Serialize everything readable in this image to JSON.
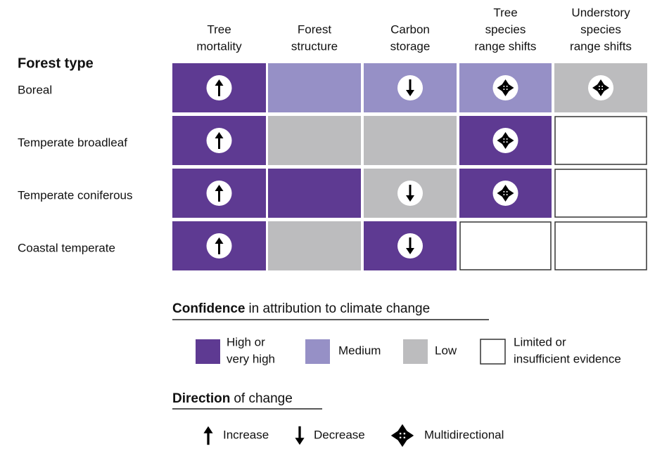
{
  "header": {
    "row_heading": "Forest type",
    "columns": [
      [
        "Tree",
        "mortality"
      ],
      [
        "Forest",
        "structure"
      ],
      [
        "Carbon",
        "storage"
      ],
      [
        "Tree",
        "species",
        "range shifts"
      ],
      [
        "Understory",
        "species",
        "range shifts"
      ]
    ]
  },
  "table": {
    "rows": [
      {
        "label": "Boreal",
        "cells": [
          {
            "fill": "#5e3a92",
            "arrow": 0
          },
          {
            "fill": "#9690c6",
            "arrow": null
          },
          {
            "fill": "#9690c6",
            "arrow": 1
          },
          {
            "fill": "#9690c6",
            "arrow": 2
          },
          {
            "fill": "#bcbcbe",
            "arrow": 2
          }
        ]
      },
      {
        "label": "Temperate broadleaf",
        "cells": [
          {
            "fill": "#5e3a92",
            "arrow": 0
          },
          {
            "fill": "#bcbcbe",
            "arrow": null
          },
          {
            "fill": "#bcbcbe",
            "arrow": null
          },
          {
            "fill": "#5e3a92",
            "arrow": 2
          },
          {
            "fill": "#ffffff",
            "arrow": null
          }
        ]
      },
      {
        "label": "Temperate coniferous",
        "cells": [
          {
            "fill": "#5e3a92",
            "arrow": 0
          },
          {
            "fill": "#5e3a92",
            "arrow": null
          },
          {
            "fill": "#bcbcbe",
            "arrow": 1
          },
          {
            "fill": "#5e3a92",
            "arrow": 2
          },
          {
            "fill": "#ffffff",
            "arrow": null
          }
        ]
      },
      {
        "label": "Coastal temperate",
        "cells": [
          {
            "fill": "#5e3a92",
            "arrow": 0
          },
          {
            "fill": "#bcbcbe",
            "arrow": null
          },
          {
            "fill": "#5e3a92",
            "arrow": 1
          },
          {
            "fill": "#ffffff",
            "arrow": null
          },
          {
            "fill": "#ffffff",
            "arrow": null
          }
        ]
      }
    ]
  },
  "legend": {
    "confidence": {
      "title_bold": "Confidence",
      "title_rest": "in attribution to climate change",
      "items": [
        {
          "lines": [
            "High or",
            "very high"
          ],
          "fill": "#5e3a92"
        },
        {
          "lines": [
            "Medium"
          ],
          "fill": "#9690c6"
        },
        {
          "lines": [
            "Low"
          ],
          "fill": "#bcbcbe"
        },
        {
          "lines": [
            "Limited or",
            "insufficient evidence"
          ],
          "fill": "#ffffff"
        }
      ]
    },
    "direction": {
      "title_bold": "Direction",
      "title_rest": "of change",
      "items": [
        "Increase",
        "Decrease",
        "Multidirectional"
      ]
    }
  }
}
